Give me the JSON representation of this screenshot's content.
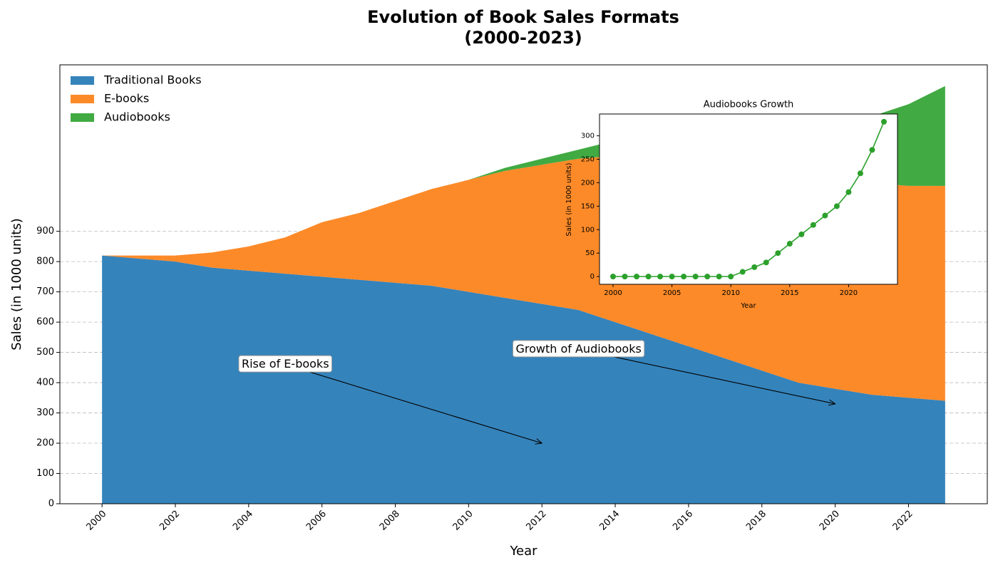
{
  "chart_data": [
    {
      "type": "area",
      "title": "Evolution of Book Sales Formats\n(2000-2023)",
      "x_label": "Year",
      "y_label": "Sales (in 1000 units)",
      "x": [
        2000,
        2001,
        2002,
        2003,
        2004,
        2005,
        2006,
        2007,
        2008,
        2009,
        2010,
        2011,
        2012,
        2013,
        2014,
        2015,
        2016,
        2017,
        2018,
        2019,
        2020,
        2021,
        2022,
        2023
      ],
      "series": [
        {
          "name": "Traditional Books",
          "color": "#3583bb",
          "values": [
            820,
            810,
            800,
            780,
            770,
            760,
            750,
            740,
            730,
            720,
            700,
            680,
            660,
            640,
            600,
            560,
            520,
            480,
            440,
            400,
            380,
            360,
            350,
            340
          ]
        },
        {
          "name": "E-books",
          "color": "#fd8a28",
          "values": [
            0,
            10,
            20,
            50,
            80,
            120,
            180,
            220,
            270,
            320,
            370,
            420,
            460,
            500,
            550,
            600,
            640,
            660,
            680,
            700,
            700,
            700,
            700,
            710
          ]
        },
        {
          "name": "Audiobooks",
          "color": "#41aa42",
          "values": [
            0,
            0,
            0,
            0,
            0,
            0,
            0,
            0,
            0,
            0,
            0,
            10,
            20,
            30,
            50,
            70,
            90,
            110,
            130,
            150,
            180,
            220,
            270,
            330
          ]
        }
      ],
      "stacked": true,
      "xlim": [
        1998.85,
        2024.15
      ],
      "ylim": [
        0,
        1450
      ],
      "xticks": [
        2000,
        2002,
        2004,
        2006,
        2008,
        2010,
        2012,
        2014,
        2016,
        2018,
        2020,
        2022
      ],
      "yticks": [
        0,
        100,
        200,
        300,
        400,
        500,
        600,
        700,
        800,
        900
      ],
      "grid": true,
      "legend": "upper left",
      "annotations": [
        {
          "text": "Rise of E-books",
          "color": "#f0a500",
          "xy": [
            2012,
            200
          ],
          "xytext": [
            2005,
            460
          ]
        },
        {
          "text": "Growth of Audiobooks",
          "color": "#008000",
          "xy": [
            2020,
            330
          ],
          "xytext": [
            2013,
            510
          ]
        }
      ]
    },
    {
      "type": "line",
      "title": "Audiobooks Growth",
      "x_label": "Year",
      "y_label": "Sales (in 1000 units)",
      "x": [
        2000,
        2001,
        2002,
        2003,
        2004,
        2005,
        2006,
        2007,
        2008,
        2009,
        2010,
        2011,
        2012,
        2013,
        2014,
        2015,
        2016,
        2017,
        2018,
        2019,
        2020,
        2021,
        2022,
        2023
      ],
      "series": [
        {
          "name": "Audiobooks",
          "color": "#2ca02c",
          "values": [
            0,
            0,
            0,
            0,
            0,
            0,
            0,
            0,
            0,
            0,
            0,
            10,
            20,
            30,
            50,
            70,
            90,
            110,
            130,
            150,
            180,
            220,
            270,
            330
          ]
        }
      ],
      "xlim": [
        1998.85,
        2024.15
      ],
      "ylim": [
        -16.5,
        346.5
      ],
      "xticks": [
        2000,
        2005,
        2010,
        2015,
        2020
      ],
      "yticks": [
        0,
        50,
        100,
        150,
        200,
        250,
        300
      ]
    }
  ]
}
